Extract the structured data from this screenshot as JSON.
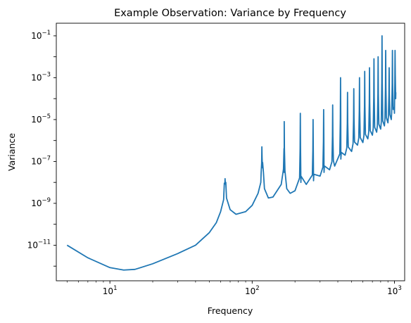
{
  "chart_data": {
    "type": "line",
    "title": "Example Observation: Variance by Frequency",
    "xlabel": "Frequency",
    "ylabel": "Variance",
    "xscale": "log",
    "yscale": "log",
    "xlim": [
      4.2,
      1180
    ],
    "ylim": [
      2e-13,
      0.4
    ],
    "grid": false,
    "color": "#1f77b4",
    "x_ticks": [
      {
        "value": 10,
        "base": "10",
        "exp": "1"
      },
      {
        "value": 100,
        "base": "10",
        "exp": "2"
      },
      {
        "value": 1000,
        "base": "10",
        "exp": "3"
      }
    ],
    "y_ticks": [
      {
        "value": 1e-11,
        "base": "10",
        "exp": "−11"
      },
      {
        "value": 1e-09,
        "base": "10",
        "exp": "−9"
      },
      {
        "value": 1e-07,
        "base": "10",
        "exp": "−7"
      },
      {
        "value": 1e-05,
        "base": "10",
        "exp": "−5"
      },
      {
        "value": 0.001,
        "base": "10",
        "exp": "−3"
      },
      {
        "value": 0.1,
        "base": "10",
        "exp": "−1"
      }
    ],
    "baseline": [
      [
        5,
        1e-11
      ],
      [
        7,
        2.5e-12
      ],
      [
        10,
        8.5e-13
      ],
      [
        12.5,
        6.5e-13
      ],
      [
        15,
        7e-13
      ],
      [
        20,
        1.3e-12
      ],
      [
        30,
        4e-12
      ],
      [
        40,
        1e-11
      ],
      [
        50,
        4e-11
      ],
      [
        56,
        1.2e-10
      ],
      [
        60,
        4e-10
      ],
      [
        63,
        1.5e-09
      ],
      [
        64.5,
        1.5e-08
      ],
      [
        66,
        1.8e-09
      ],
      [
        70,
        5e-10
      ],
      [
        77,
        3e-10
      ],
      [
        90,
        4e-10
      ],
      [
        100,
        8e-10
      ],
      [
        110,
        3e-09
      ],
      [
        115,
        1e-08
      ],
      [
        118,
        5e-08
      ],
      [
        120,
        3e-08
      ],
      [
        122,
        5e-09
      ],
      [
        130,
        1.8e-09
      ],
      [
        140,
        2e-09
      ],
      [
        160,
        8e-09
      ],
      [
        168,
        3e-08
      ],
      [
        175,
        5e-09
      ],
      [
        185,
        3e-09
      ],
      [
        200,
        4e-09
      ],
      [
        220,
        1e-08
      ],
      [
        240,
        8e-09
      ],
      [
        270,
        1.2e-08
      ],
      [
        300,
        2e-08
      ],
      [
        320,
        3e-08
      ],
      [
        350,
        4e-08
      ],
      [
        380,
        6e-08
      ],
      [
        420,
        1.3e-07
      ],
      [
        450,
        2e-07
      ],
      [
        500,
        3e-07
      ],
      [
        550,
        6e-07
      ],
      [
        600,
        8e-07
      ],
      [
        650,
        1.2e-06
      ],
      [
        700,
        1.8e-06
      ],
      [
        750,
        2.5e-06
      ],
      [
        800,
        3.5e-06
      ],
      [
        850,
        5e-06
      ],
      [
        900,
        7e-06
      ],
      [
        950,
        1e-05
      ],
      [
        1000,
        2e-05
      ],
      [
        1020,
        0.0001
      ]
    ],
    "peaks": [
      {
        "x": 64.5,
        "y": 1.5e-08
      },
      {
        "x": 117,
        "y": 5e-07
      },
      {
        "x": 168,
        "y": 8e-06
      },
      {
        "x": 218,
        "y": 2e-05
      },
      {
        "x": 268,
        "y": 1e-05
      },
      {
        "x": 318,
        "y": 3e-05
      },
      {
        "x": 368,
        "y": 5e-05
      },
      {
        "x": 418,
        "y": 0.001
      },
      {
        "x": 468,
        "y": 0.0002
      },
      {
        "x": 518,
        "y": 0.0003
      },
      {
        "x": 568,
        "y": 0.001
      },
      {
        "x": 618,
        "y": 0.002
      },
      {
        "x": 668,
        "y": 0.003
      },
      {
        "x": 718,
        "y": 0.008
      },
      {
        "x": 768,
        "y": 0.01
      },
      {
        "x": 818,
        "y": 0.1
      },
      {
        "x": 868,
        "y": 0.02
      },
      {
        "x": 918,
        "y": 0.003
      },
      {
        "x": 968,
        "y": 0.02
      },
      {
        "x": 1010,
        "y": 0.02
      }
    ]
  }
}
